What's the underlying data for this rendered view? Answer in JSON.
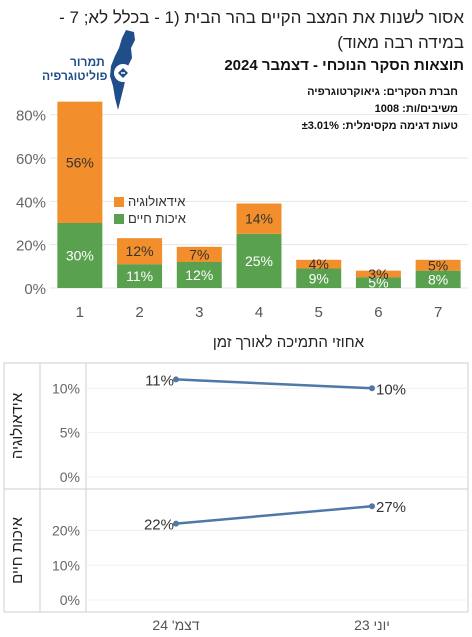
{
  "header": {
    "title_line1": "אסור לשנות את המצב הקיים בהר הבית (1 - בכלל לא; 7 -",
    "title_line2": "במידה רבה מאוד)",
    "subtitle": "תוצאות הסקר הנוכחי - דצמבר 2024",
    "meta_company": "חברת הסקרים: גיאוקרטוגרפיה",
    "meta_respondents": "משיבים/ות: 1008",
    "meta_error": "טעות דגימה מקסימלית: ±3.01%"
  },
  "logo": {
    "line1": "תמרור",
    "line2": "פוליטוגרפיה",
    "color": "#1f4e8a"
  },
  "colors": {
    "ideology": "#f28e2b",
    "quality_of_life": "#59a14f",
    "line": "#4e79a7"
  },
  "chart_data": [
    {
      "type": "bar",
      "stacked": true,
      "categories": [
        "1",
        "2",
        "3",
        "4",
        "5",
        "6",
        "7"
      ],
      "series": [
        {
          "name": "איכות חיים",
          "values": [
            30,
            11,
            12,
            25,
            9,
            5,
            8
          ],
          "labels": [
            "30%",
            "11%",
            "12%",
            "25%",
            "9%",
            "5%",
            "8%"
          ]
        },
        {
          "name": "אידאולוגיה",
          "values": [
            56,
            12,
            7,
            14,
            4,
            3,
            5
          ],
          "labels": [
            "56%",
            "12%",
            "7%",
            "14%",
            "4%",
            "3%",
            "5%"
          ]
        }
      ],
      "yticks": [
        "0%",
        "20%",
        "40%",
        "60%",
        "80%"
      ],
      "ylim": [
        0,
        90
      ],
      "legend_position": "top-left"
    },
    {
      "type": "line",
      "title": "אחוזי התמיכה לאורך זמן",
      "x": [
        "דצמ' 24",
        "יוני 23"
      ],
      "panels": [
        {
          "name": "אידאולוגיה",
          "values": [
            11,
            10
          ],
          "labels": [
            "11%",
            "10%"
          ],
          "yticks": [
            "0%",
            "5%",
            "10%"
          ],
          "ylim": [
            0,
            11.5
          ]
        },
        {
          "name": "איכות חיים",
          "values": [
            22,
            27
          ],
          "labels": [
            "22%",
            "27%"
          ],
          "yticks": [
            "0%",
            "10%",
            "20%"
          ],
          "ylim": [
            0,
            28.5
          ]
        }
      ]
    }
  ]
}
